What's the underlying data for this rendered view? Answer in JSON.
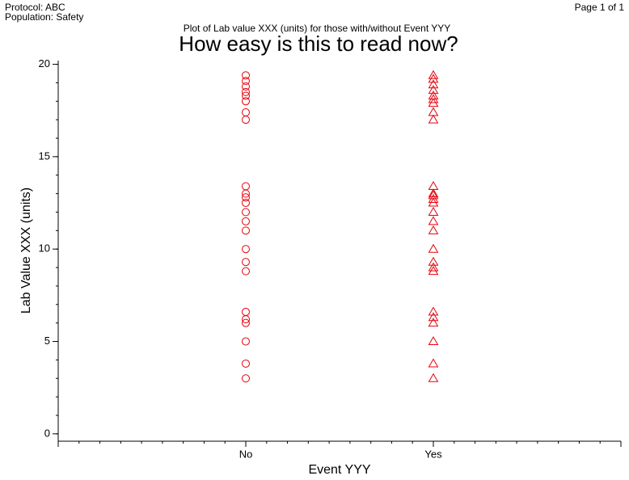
{
  "header": {
    "protocol": "Protocol: ABC",
    "population": "Population: Safety",
    "page": "Page 1 of 1"
  },
  "chart_data": {
    "type": "strip",
    "subtitle": "Plot of Lab value XXX (units) for those with/without Event YYY",
    "title": "How easy is this to read now?",
    "xlabel": "Event YYY",
    "ylabel": "Lab Value XXX (units)",
    "categories": [
      "No",
      "Yes"
    ],
    "markers": [
      "circle",
      "triangle"
    ],
    "color": "#e8000b",
    "points": [
      [
        19.4,
        19.1,
        18.8,
        18.5,
        18.3,
        18.0,
        17.4,
        17.0,
        13.4,
        13.0,
        12.8,
        12.5,
        12.0,
        11.5,
        11.0,
        10.0,
        9.3,
        8.8,
        6.6,
        6.2,
        6.0,
        5.0,
        3.8,
        3.0
      ],
      [
        19.4,
        19.2,
        18.9,
        18.6,
        18.3,
        18.1,
        17.9,
        17.4,
        17.0,
        13.4,
        13.0,
        12.9,
        12.7,
        12.5,
        12.0,
        11.5,
        11.0,
        10.0,
        9.3,
        9.0,
        8.8,
        6.6,
        6.3,
        6.0,
        5.0,
        3.8,
        3.0
      ]
    ],
    "ylim": [
      -0.4,
      20.2
    ],
    "yticks": [
      0,
      5,
      10,
      15,
      20
    ]
  }
}
